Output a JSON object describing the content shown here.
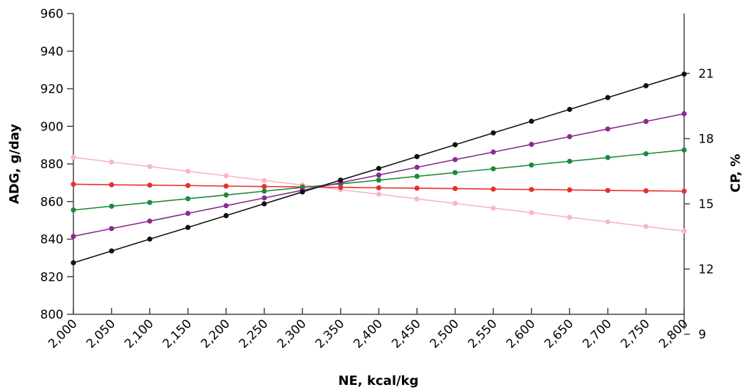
{
  "chart_data": {
    "type": "line",
    "title": "",
    "xlabel": "NE, kcal/kg",
    "ylabel": "ADG, g/day",
    "y2label": "CP, %",
    "x": [
      2000,
      2050,
      2100,
      2150,
      2200,
      2250,
      2300,
      2350,
      2400,
      2450,
      2500,
      2550,
      2600,
      2650,
      2700,
      2750,
      2800
    ],
    "x_tick_labels": [
      "2,000",
      "2,050",
      "2,100",
      "2,150",
      "2,200",
      "2,250",
      "2,300",
      "2,350",
      "2,400",
      "2,450",
      "2,500",
      "2,550",
      "2,600",
      "2,650",
      "2,700",
      "2,750",
      "2,800"
    ],
    "xlim": [
      2000,
      2800
    ],
    "ylim": [
      800,
      960
    ],
    "y_ticks": [
      800,
      820,
      840,
      860,
      880,
      900,
      920,
      940,
      960
    ],
    "y2_ticks": [
      9,
      12,
      15,
      18,
      21
    ],
    "grid": false,
    "legend": "none",
    "series": [
      {
        "color": "#f7b8c8",
        "values": [
          883.5,
          881,
          878.6,
          876.1,
          873.7,
          871.2,
          868.8,
          866.3,
          863.9,
          861.4,
          859,
          856.5,
          854.1,
          851.6,
          849.2,
          846.7,
          844.3
        ]
      },
      {
        "color": "#e8302a",
        "values": [
          869.2,
          868.9,
          868.7,
          868.5,
          868.2,
          868,
          867.8,
          867.5,
          867.3,
          867.1,
          866.9,
          866.6,
          866.4,
          866.2,
          865.9,
          865.7,
          865.5
        ]
      },
      {
        "color": "#1f8a3a",
        "values": [
          855.5,
          857.5,
          859.5,
          861.5,
          863.5,
          865.5,
          867.5,
          869.4,
          871.4,
          873.4,
          875.4,
          877.4,
          879.4,
          881.4,
          883.4,
          885.4,
          887.4
        ]
      },
      {
        "color": "#8a2b8f",
        "values": [
          841.5,
          845.6,
          849.6,
          853.7,
          857.8,
          861.9,
          866,
          870,
          874.1,
          878.2,
          882.3,
          886.3,
          890.4,
          894.5,
          898.6,
          902.6,
          906.7
        ]
      },
      {
        "color": "#111111",
        "values": [
          827.4,
          833.7,
          840,
          846.2,
          852.5,
          858.8,
          865.1,
          871.4,
          877.6,
          883.9,
          890.2,
          896.5,
          902.7,
          909,
          915.3,
          921.6,
          927.8
        ]
      }
    ]
  }
}
